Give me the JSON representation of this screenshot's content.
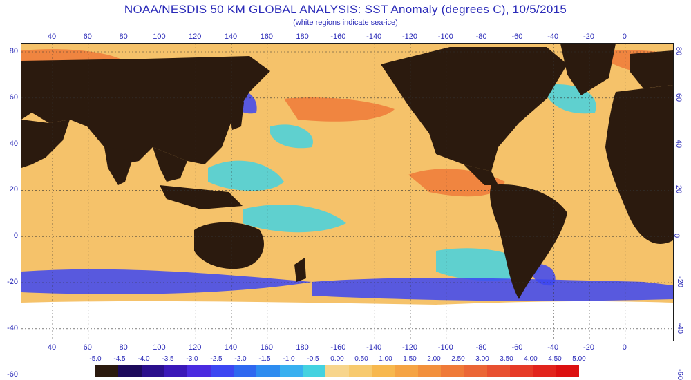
{
  "title": "NOAA/NESDIS 50 KM GLOBAL ANALYSIS: SST Anomaly (degrees C), 10/5/2015",
  "subtitle": "(white regions indicate sea-ice)",
  "lon_labels": [
    "40",
    "60",
    "80",
    "100",
    "120",
    "140",
    "160",
    "180",
    "-160",
    "-140",
    "-120",
    "-100",
    "-80",
    "-60",
    "-40",
    "-20",
    "0"
  ],
  "lat_labels": [
    "80",
    "60",
    "40",
    "20",
    "0",
    "-20",
    "-40",
    "-60"
  ],
  "legend": {
    "labels": [
      "-5.0",
      "-4.5",
      "-4.0",
      "-3.5",
      "-3.0",
      "-2.5",
      "-2.0",
      "-1.5",
      "-1.0",
      "-0.5",
      "0.00",
      "0.50",
      "1.00",
      "1.50",
      "2.00",
      "2.50",
      "3.00",
      "3.50",
      "4.00",
      "4.50",
      "5.00"
    ],
    "colors": [
      "#2b1a0e",
      "#1c0a5a",
      "#2a0f8c",
      "#3a18b8",
      "#4a2be0",
      "#3c46f2",
      "#2f68f0",
      "#2d8cf0",
      "#38b0f0",
      "#44d2e0",
      "#f7d58c",
      "#f7ca6e",
      "#f7b84e",
      "#f5a444",
      "#f2903c",
      "#ef7a38",
      "#eb6636",
      "#e85030",
      "#e63a26",
      "#e2241c",
      "#dc1010"
    ]
  },
  "colors": {
    "land": "#2b1a0e",
    "ice": "#ffffff",
    "ocean_warm": "#f5c26a",
    "ocean_hot": "#ef7a38",
    "ocean_cool": "#44d2e0",
    "ocean_cold": "#3c46f2",
    "text": "#2a2ab8"
  }
}
